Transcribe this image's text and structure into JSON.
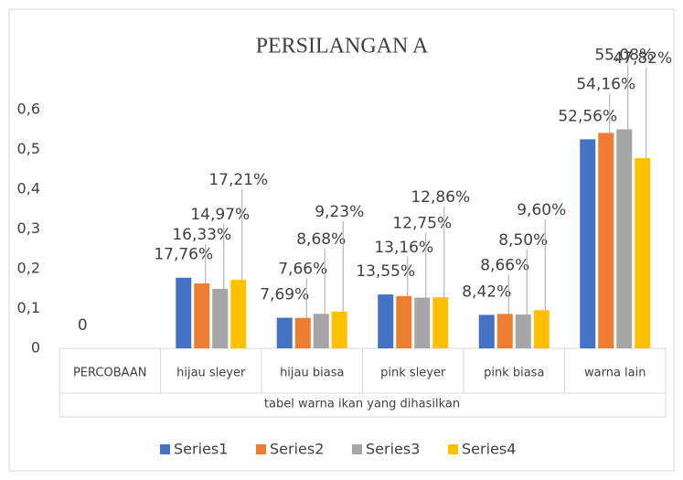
{
  "chart_data": {
    "type": "bar",
    "title": "PERSILANGAN A",
    "categories": [
      "PERCOBAAN",
      "hijau sleyer",
      "hijau biasa",
      "pink sleyer",
      "pink biasa",
      "warna lain"
    ],
    "x_label": "tabel warna ikan yang dihasilkan",
    "series": [
      {
        "name": "Series1",
        "color": "#4472c4",
        "values": [
          0,
          0.1776,
          0.0769,
          0.1355,
          0.0842,
          0.5256
        ],
        "value_labels": [
          "0",
          "17,76%",
          "7,69%",
          "13,55%",
          "8,42%",
          "52,56%"
        ]
      },
      {
        "name": "Series2",
        "color": "#ed7d31",
        "values": [
          null,
          0.1633,
          0.0766,
          0.1316,
          0.0866,
          0.5416
        ],
        "value_labels": [
          null,
          "16,33%",
          "7,66%",
          "13,16%",
          "8,66%",
          "54,16%"
        ]
      },
      {
        "name": "Series3",
        "color": "#a5a5a5",
        "values": [
          null,
          0.1497,
          0.0868,
          0.1275,
          0.085,
          0.5508
        ],
        "value_labels": [
          null,
          "14,97%",
          "8,68%",
          "12,75%",
          "8,50%",
          "55,08%"
        ]
      },
      {
        "name": "Series4",
        "color": "#ffc000",
        "values": [
          null,
          0.1721,
          0.0923,
          0.1286,
          0.096,
          0.4782
        ],
        "value_labels": [
          null,
          "17,21%",
          "9,23%",
          "12,86%",
          "9,60%",
          "47,82%"
        ]
      }
    ],
    "ylim": [
      0,
      0.6
    ],
    "yticks": [
      0,
      {
        "value": 0.1,
        "label": "0,1"
      },
      {
        "value": 0.2,
        "label": "0,2"
      },
      {
        "value": 0.3,
        "label": "0,3"
      },
      {
        "value": 0.4,
        "label": "0,4"
      },
      {
        "value": 0.5,
        "label": "0,5"
      },
      {
        "value": 0.6,
        "label": "0,6"
      }
    ],
    "grid": false,
    "legend": "bottom"
  }
}
